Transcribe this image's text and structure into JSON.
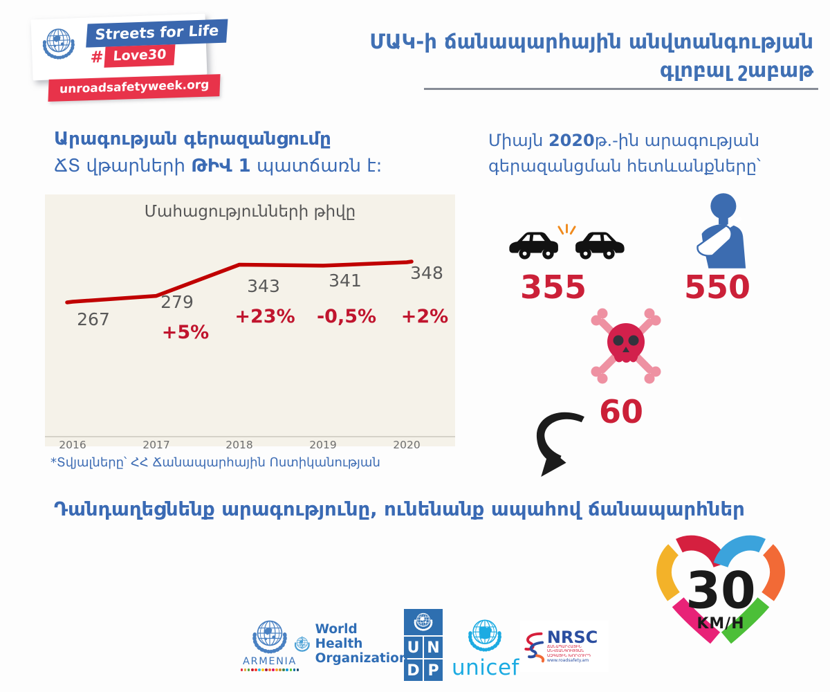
{
  "header": {
    "badge": {
      "line1": "Streets for Life",
      "hash": "#",
      "line2": "Love30",
      "website": "unroadsafetyweek.org"
    },
    "title_line1": "ՄԱԿ-ի ճանապարհային անվտանգության",
    "title_line2": "գլոբալ շաբաթ"
  },
  "left_section": {
    "heading_line1": "Արագության գերազանցումը",
    "heading_line2_pre": "ՃՏ վթարների ",
    "heading_line2_num": "ԹԻՎ 1",
    "heading_line2_post": " պատճառն է:",
    "footnote": "*Տվյալները՝ ՀՀ Ճանապարհային Ոստիկանության"
  },
  "right_section": {
    "intro_pre": "Միայն ",
    "intro_year": "2020",
    "intro_mid": "թ.-ին արագության",
    "intro_line2": "գերազանցման հետևանքները՝",
    "stats": {
      "crashes": "355",
      "injured": "550",
      "deaths": "60"
    },
    "icons": {
      "crashes": "car-crash-icon",
      "injured": "injured-person-icon",
      "deaths": "skull-crossbones-icon",
      "trend": "hand-drawn-down-arrow-icon"
    }
  },
  "chart_data": {
    "type": "line",
    "title": "Մահացությունների թիվը",
    "categories": [
      "2016",
      "2017",
      "2018",
      "2019",
      "2020"
    ],
    "values": [
      267,
      279,
      343,
      341,
      348
    ],
    "changes": [
      "",
      "+5%",
      "+23%",
      "-0,5%",
      "+2%"
    ],
    "series_name": "Մահացությունների թիվը",
    "line_color": "#c00000",
    "value_label_color": "#595959",
    "change_label_color": "#c0152e",
    "background": "#f5f2e9",
    "ylim": [
      260,
      360
    ],
    "grid": false,
    "legend": false
  },
  "headline": "Դանդաղեցնենք արագությունը, ունենանք ապահով ճանապարհներ",
  "logos": {
    "un_armenia": {
      "country": "ARMENIA"
    },
    "who": {
      "line1": "World Health",
      "line2": "Organization"
    },
    "undp": {
      "letters": [
        "U",
        "N",
        "D",
        "P"
      ]
    },
    "unicef": {
      "name": "unicef"
    },
    "nrsc": {
      "name": "NRSC",
      "sub_line1": "ՃԱՆԱՊԱՐՀԱՅԻՆ ԱՆՎՏԱՆԳՈՒԹՅԱՆ",
      "sub_line2": "ԱԶԳԱՅԻՆ ԽՈՐՀՈՒՐԴ",
      "url": "www.roadsafety.am"
    }
  },
  "heart_badge": {
    "speed": "30",
    "unit": "KM/H"
  },
  "colors": {
    "primary_blue": "#3d6cb4",
    "accent_red": "#cb2038",
    "banner_red": "#e8334a",
    "banner_blue": "#3a67ae",
    "chart_line_red": "#c00000",
    "unicef_cyan": "#1cabe2"
  }
}
